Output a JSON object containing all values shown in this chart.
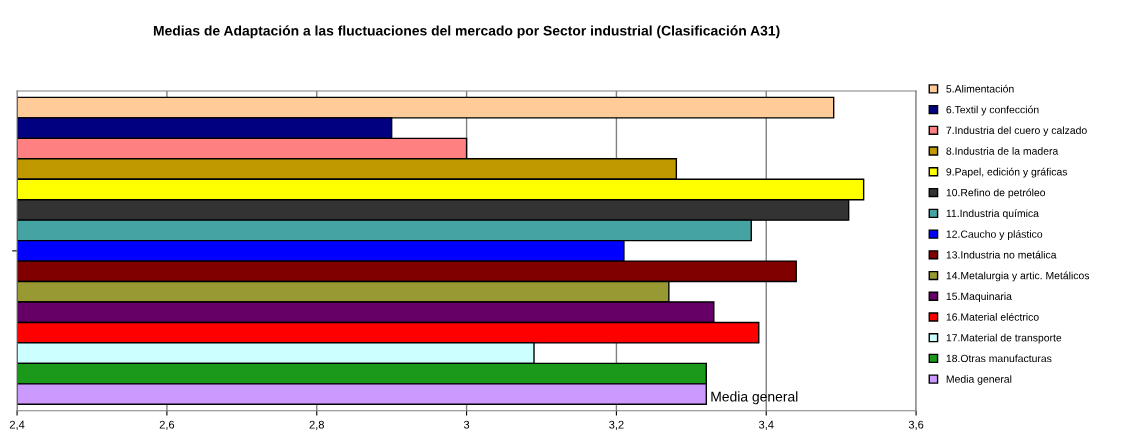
{
  "chart_data": {
    "type": "bar",
    "orientation": "horizontal",
    "title": "Medias de Adaptación a las fluctuaciones del mercado por Sector industrial (Clasificación A31)",
    "categories": [
      null
    ],
    "series": [
      {
        "name": "5.Alimentación",
        "color": "#ffcc99",
        "values": [
          3.49
        ]
      },
      {
        "name": "6.Textil y confección",
        "color": "#000080",
        "values": [
          2.9
        ]
      },
      {
        "name": "7.Industria del cuero y calzado",
        "color": "#ff8080",
        "values": [
          3.0
        ]
      },
      {
        "name": "8.Industria de la madera",
        "color": "#c09900",
        "values": [
          3.28
        ]
      },
      {
        "name": "9.Papel, edición y gráficas",
        "color": "#ffff00",
        "values": [
          3.53
        ]
      },
      {
        "name": "10.Refino de petróleo",
        "color": "#333333",
        "values": [
          3.51
        ]
      },
      {
        "name": "11.Industria química",
        "color": "#46a3a3",
        "values": [
          3.38
        ]
      },
      {
        "name": "12.Caucho y plástico",
        "color": "#0000ff",
        "values": [
          3.21
        ]
      },
      {
        "name": "13.Industria no metálica",
        "color": "#800000",
        "values": [
          3.44
        ]
      },
      {
        "name": "14.Metalurgia y artic. Metálicos",
        "color": "#999933",
        "values": [
          3.27
        ]
      },
      {
        "name": "15.Maquinaria",
        "color": "#660066",
        "values": [
          3.33
        ]
      },
      {
        "name": "16.Material eléctrico",
        "color": "#ff0000",
        "values": [
          3.39
        ]
      },
      {
        "name": "17.Material de transporte",
        "color": "#ccffff",
        "values": [
          3.09
        ]
      },
      {
        "name": "18.Otras manufacturas",
        "color": "#1a991a",
        "values": [
          3.32
        ]
      },
      {
        "name": "Media general",
        "color": "#cc99ff",
        "values": [
          3.32
        ]
      }
    ],
    "xlim": [
      2.4,
      3.6
    ],
    "xticks": [
      {
        "value": 2.4,
        "label": "2,4"
      },
      {
        "value": 2.6,
        "label": "2,6"
      },
      {
        "value": 2.8,
        "label": "2,8"
      },
      {
        "value": 3.0,
        "label": "3"
      },
      {
        "value": 3.2,
        "label": "3,2"
      },
      {
        "value": 3.4,
        "label": "3,4"
      },
      {
        "value": 3.6,
        "label": "3,6"
      }
    ],
    "grid": "x",
    "legend": "right",
    "tick_labels": "x",
    "annotations": [
      "Media general"
    ]
  }
}
